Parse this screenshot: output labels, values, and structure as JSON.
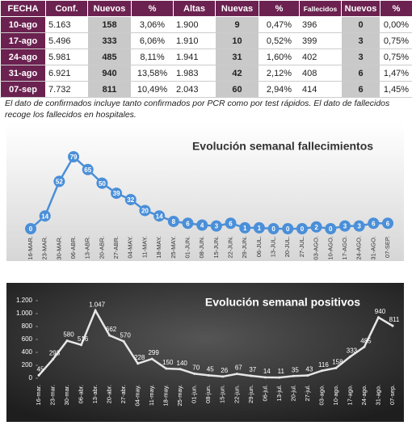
{
  "table": {
    "header": [
      "FECHA",
      "Conf.",
      "Nuevos",
      "%",
      "Altas",
      "Nuevas",
      "%",
      "Fallecidos",
      "Nuevos",
      "%"
    ],
    "rows": [
      [
        "10-ago",
        "5.163",
        "158",
        "3,06%",
        "1.900",
        "9",
        "0,47%",
        "396",
        "0",
        "0,00%"
      ],
      [
        "17-ago",
        "5.496",
        "333",
        "6,06%",
        "1.910",
        "10",
        "0,52%",
        "399",
        "3",
        "0,75%"
      ],
      [
        "24-ago",
        "5.981",
        "485",
        "8,11%",
        "1.941",
        "31",
        "1,60%",
        "402",
        "3",
        "0,75%"
      ],
      [
        "31-ago",
        "6.921",
        "940",
        "13,58%",
        "1.983",
        "42",
        "2,12%",
        "408",
        "6",
        "1,47%"
      ],
      [
        "07-sep",
        "7.732",
        "811",
        "10,49%",
        "2.043",
        "60",
        "2,94%",
        "414",
        "6",
        "1,45%"
      ]
    ]
  },
  "note": "El dato de confirmados incluye tanto confirmados por PCR como por test rápidos. El dato de fallecidos recoge los fallecidos en hospitales.",
  "chart_data": [
    {
      "type": "line",
      "title": "Evolución semanal fallecimientos",
      "color": "#4a8fd8",
      "categories": [
        "16-MAR.",
        "23-MAR.",
        "30-MAR.",
        "06-ABR.",
        "13-ABR.",
        "20-ABR.",
        "27-ABR.",
        "04-MAY.",
        "11-MAY.",
        "18-MAY.",
        "25-MAY.",
        "01-JUN.",
        "08-JUN.",
        "15-JUN.",
        "22-JUN.",
        "29-JUN.",
        "06-JUL.",
        "13-JUL.",
        "20-JUL.",
        "27-JUL.",
        "03-AGO.",
        "10-AGO.",
        "17-AGO.",
        "24-AGO.",
        "31-AGO.",
        "07-SEP."
      ],
      "values": [
        0,
        14,
        52,
        79,
        65,
        50,
        39,
        32,
        20,
        14,
        8,
        6,
        4,
        3,
        6,
        1,
        1,
        0,
        0,
        0,
        2,
        0,
        3,
        3,
        6,
        6
      ]
    },
    {
      "type": "line",
      "title": "Evolución semanal positivos",
      "color": "#e6e6e6",
      "categories": [
        "16-mar.",
        "23-mar.",
        "30-mar.",
        "06-abr.",
        "13-abr.",
        "20-abr.",
        "27-abr.",
        "04-may.",
        "11-may.",
        "18-may.",
        "25-may.",
        "01-jun.",
        "08-jun.",
        "15-jun.",
        "22-jun.",
        "29-jun.",
        "06-jul.",
        "13-jul.",
        "20-jul.",
        "27-jul.",
        "03-ago.",
        "10-ago.",
        "17-ago.",
        "24-ago.",
        "31-ago.",
        "07-sep."
      ],
      "values": [
        45,
        293,
        580,
        516,
        1047,
        662,
        570,
        228,
        299,
        150,
        140,
        70,
        45,
        26,
        67,
        37,
        14,
        11,
        35,
        43,
        116,
        158,
        333,
        485,
        940,
        811
      ],
      "value_labels": [
        "45",
        "293",
        "580",
        "516",
        "1.047",
        "662",
        "570",
        "228",
        "299",
        "150",
        "140",
        "70",
        "45",
        "26",
        "67",
        "37",
        "14",
        "11",
        "35",
        "43",
        "116",
        "158",
        "333",
        "485",
        "940",
        "811"
      ],
      "ylim": [
        0,
        1200
      ],
      "yticks": [
        0,
        200,
        400,
        600,
        800,
        {
          "value": 1000,
          "label": "1.000"
        },
        {
          "value": 1200,
          "label": "1.200"
        }
      ]
    }
  ]
}
